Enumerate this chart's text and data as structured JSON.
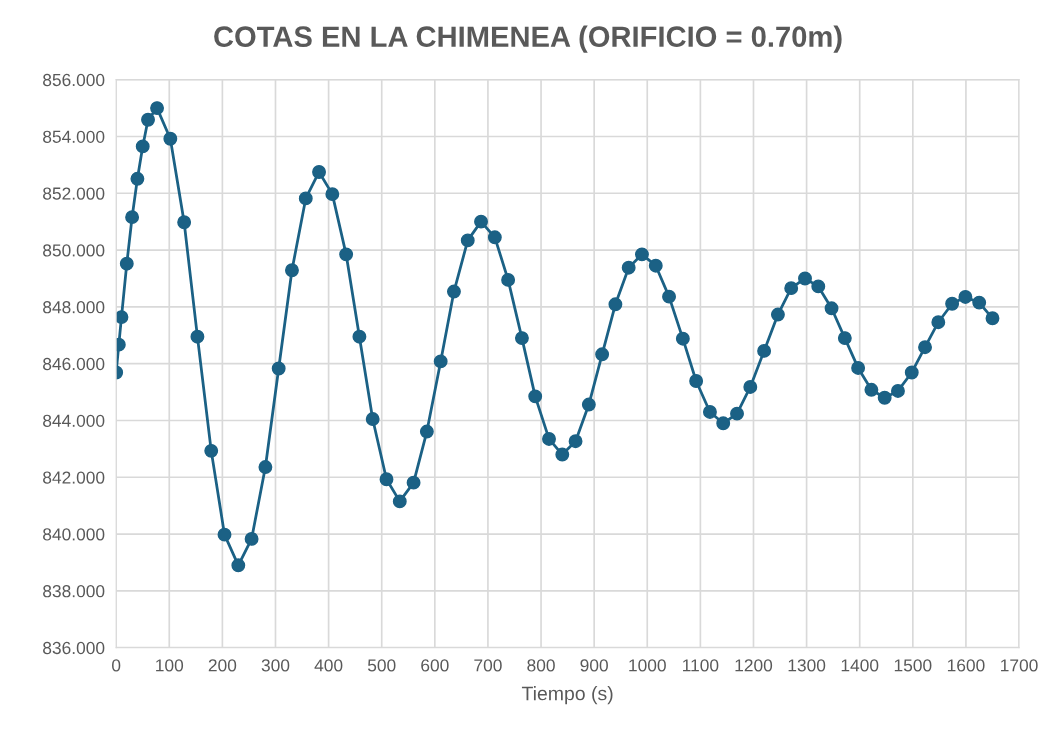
{
  "chart_data": {
    "type": "line",
    "title": "COTAS EN LA CHIMENEA (ORIFICIO = 0.70m)",
    "xlabel": "Tiempo (s)",
    "marker": "circle",
    "line_style": "solid",
    "grid": true,
    "xlim": [
      0,
      1700
    ],
    "xticks": [
      0,
      100,
      200,
      300,
      400,
      500,
      600,
      700,
      800,
      900,
      1000,
      1100,
      1200,
      1300,
      1400,
      1500,
      1600,
      1700
    ],
    "ylim": [
      836,
      856
    ],
    "yticks": [
      {
        "value": 836,
        "label": "836.000"
      },
      {
        "value": 838,
        "label": "838.000"
      },
      {
        "value": 840,
        "label": "840.000"
      },
      {
        "value": 842,
        "label": "842.000"
      },
      {
        "value": 844,
        "label": "844.000"
      },
      {
        "value": 846,
        "label": "846.000"
      },
      {
        "value": 848,
        "label": "848.000"
      },
      {
        "value": 850,
        "label": "850.000"
      },
      {
        "value": 852,
        "label": "852.000"
      },
      {
        "value": 854,
        "label": "854.000"
      },
      {
        "value": 856,
        "label": "856.000"
      }
    ],
    "series": [
      {
        "color": "#1b6185",
        "x": [
          0,
          5,
          10,
          20,
          30,
          40,
          50,
          60,
          77,
          102,
          128,
          153,
          179,
          204,
          230,
          255,
          281,
          306,
          331,
          357,
          382,
          407,
          433,
          458,
          483,
          509,
          534,
          560,
          585,
          611,
          636,
          662,
          687,
          713,
          738,
          764,
          789,
          815,
          840,
          865,
          890,
          915,
          940,
          965,
          990,
          1016,
          1041,
          1067,
          1092,
          1118,
          1143,
          1169,
          1194,
          1220,
          1246,
          1271,
          1297,
          1322,
          1347,
          1372,
          1397,
          1422,
          1447,
          1472,
          1498,
          1523,
          1548,
          1574,
          1599,
          1625,
          1650
        ],
        "values": [
          845.69,
          846.67,
          847.64,
          849.52,
          851.16,
          852.51,
          853.65,
          854.59,
          855.0,
          853.92,
          850.98,
          846.95,
          842.93,
          839.98,
          838.9,
          839.83,
          842.36,
          845.83,
          849.29,
          851.82,
          852.75,
          851.97,
          849.85,
          846.95,
          844.05,
          841.93,
          841.15,
          841.81,
          843.61,
          846.08,
          848.54,
          850.34,
          851.0,
          850.45,
          848.95,
          846.9,
          844.85,
          843.35,
          842.8,
          843.27,
          844.56,
          846.33,
          848.09,
          849.38,
          849.85,
          849.45,
          848.36,
          846.88,
          845.39,
          844.3,
          843.9,
          844.24,
          845.18,
          846.45,
          847.73,
          848.66,
          849.0,
          848.72,
          847.95,
          846.9,
          845.85,
          845.08,
          844.8,
          845.04,
          845.69,
          846.58,
          847.46,
          848.11,
          848.35,
          848.15,
          847.6
        ]
      }
    ]
  }
}
